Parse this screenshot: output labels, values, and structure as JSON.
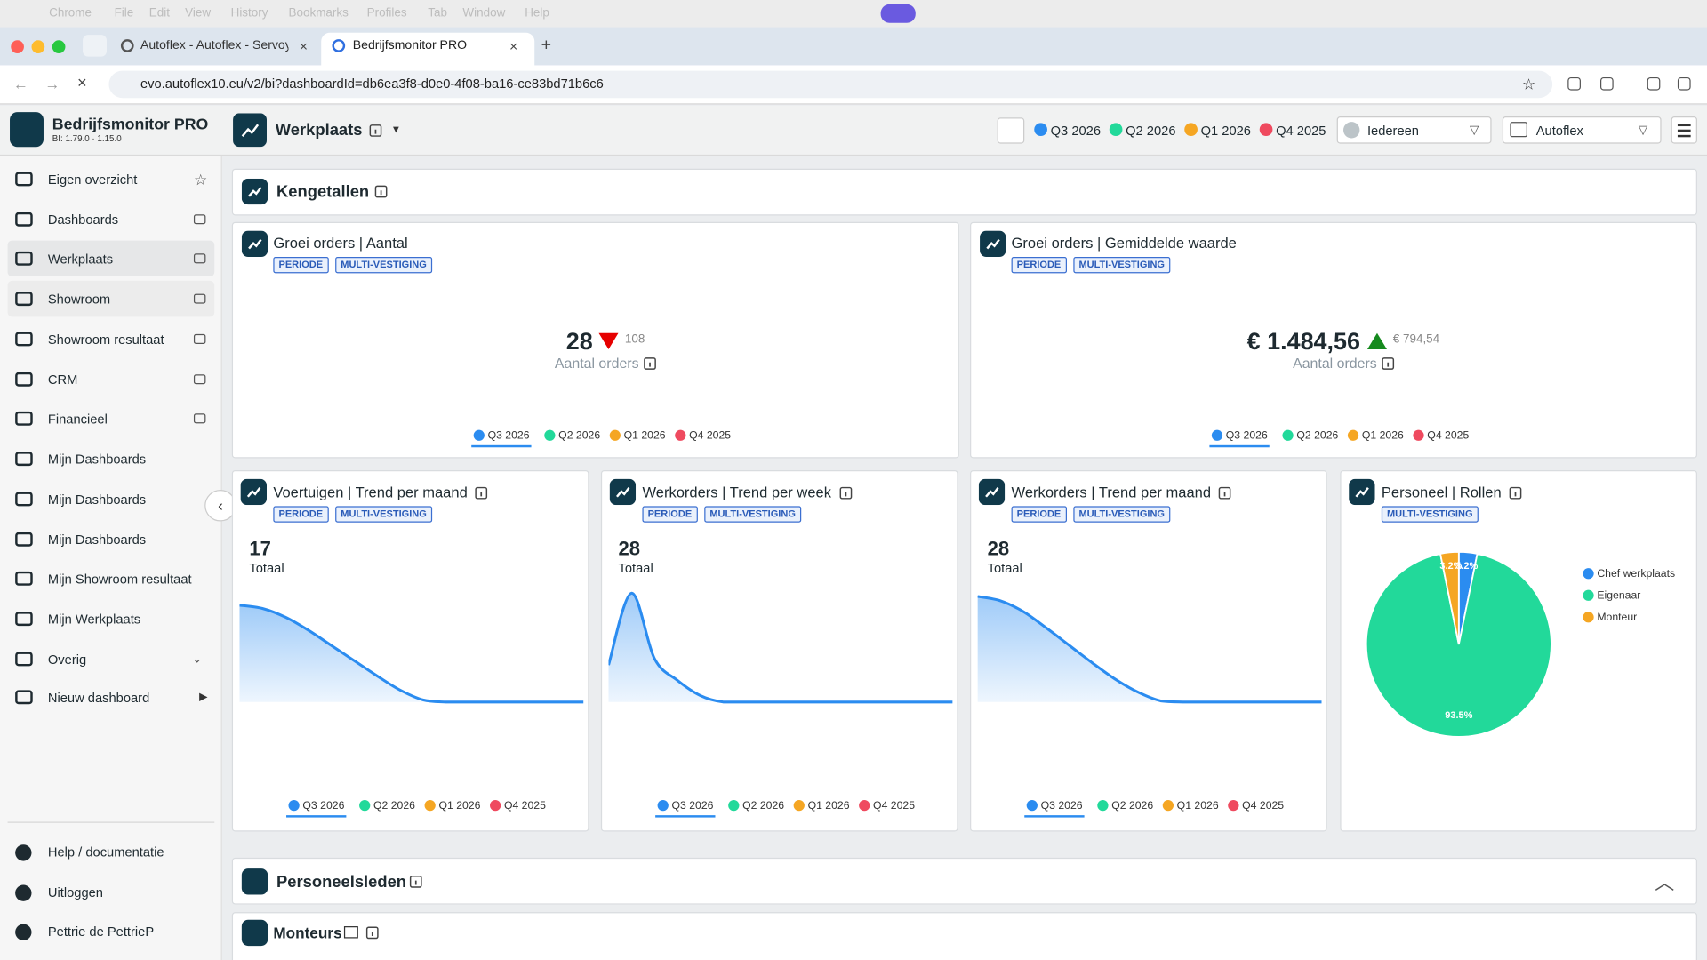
{
  "os_menu": [
    "Chrome",
    "File",
    "Edit",
    "View",
    "History",
    "Bookmarks",
    "Profiles",
    "Tab",
    "Window",
    "Help"
  ],
  "browser": {
    "tabs": [
      "Autoflex - Autoflex - Servoy N",
      "Bedrijfsmonitor PRO"
    ],
    "url": "evo.autoflex10.eu/v2/bi?dashboardId=db6ea3f8-d0e0-4f08-ba16-ce83bd71b6c6"
  },
  "app": {
    "name": "Bedrijfsmonitor PRO",
    "version": "BI: 1.79.0 · 1.15.0"
  },
  "sidebar": {
    "items": [
      "Eigen overzicht",
      "Dashboards",
      "Werkplaats",
      "Showroom",
      "Showroom resultaat",
      "CRM",
      "Financieel",
      "Mijn Dashboards",
      "Mijn Dashboards",
      "Mijn Dashboards",
      "Mijn Showroom resultaat",
      "Mijn Werkplaats",
      "Overig",
      "Nieuw dashboard"
    ],
    "footer": [
      "Help / documentatie",
      "Uitloggen",
      "Pettrie de PettrieP"
    ]
  },
  "header": {
    "title": "Werkplaats",
    "periods": [
      {
        "label": "Q3 2026",
        "color": "#2b8cf0"
      },
      {
        "label": "Q2 2026",
        "color": "#22d99a"
      },
      {
        "label": "Q1 2026",
        "color": "#f5a623"
      },
      {
        "label": "Q4 2025",
        "color": "#ef4a5f"
      }
    ],
    "user_filter": "Iedereen",
    "branch_filter": "Autoflex"
  },
  "sections": [
    "Kengetallen",
    "Personeelsleden",
    "Monteurs"
  ],
  "kpis": [
    {
      "title": "Groei orders | Aantal",
      "tags": [
        "PERIODE",
        "MULTI-VESTIGING"
      ],
      "value": "28",
      "trend": "down",
      "previous": "108",
      "caption": "Aantal orders"
    },
    {
      "title": "Groei orders | Gemiddelde waarde",
      "tags": [
        "PERIODE",
        "MULTI-VESTIGING"
      ],
      "value": "€ 1.484,56",
      "trend": "up",
      "previous": "€ 794,54",
      "caption": "Aantal orders"
    }
  ],
  "trends": [
    {
      "title": "Voertuigen | Trend per maand",
      "tags": [
        "PERIODE",
        "MULTI-VESTIGING"
      ],
      "total": 17,
      "total_label": "Totaal",
      "ylim": [
        0,
        10
      ],
      "color": "#2b8cf0",
      "values": [
        8.9,
        8.6,
        7.8,
        6.6,
        5.2,
        3.8,
        2.4,
        1.1,
        0.2,
        0,
        0,
        0,
        0,
        0,
        0,
        0
      ]
    },
    {
      "title": "Werkorders | Trend per week",
      "tags": [
        "PERIODE",
        "MULTI-VESTIGING"
      ],
      "total": 28,
      "total_label": "Totaal",
      "ylim": [
        0,
        10
      ],
      "color": "#2b8cf0",
      "values": [
        3.4,
        10,
        4,
        2,
        0.6,
        0,
        0,
        0,
        0,
        0,
        0,
        0,
        0,
        0,
        0,
        0
      ]
    },
    {
      "title": "Werkorders | Trend per maand",
      "tags": [
        "PERIODE",
        "MULTI-VESTIGING"
      ],
      "total": 28,
      "total_label": "Totaal",
      "ylim": [
        0,
        10
      ],
      "color": "#2b8cf0",
      "values": [
        9.7,
        9.3,
        8.3,
        6.8,
        5.2,
        3.6,
        2.1,
        0.9,
        0.1,
        0,
        0,
        0,
        0,
        0,
        0,
        0
      ]
    }
  ],
  "pie": {
    "title": "Personeel | Rollen",
    "tags": [
      "MULTI-VESTIGING"
    ],
    "slices": [
      {
        "name": "Chef werkplaats",
        "value": 3.2,
        "value_label": "3.2%",
        "color": "#2b8cf0"
      },
      {
        "name": "Eigenaar",
        "value": 93.5,
        "value_label": "93.5%",
        "color": "#22d99a"
      },
      {
        "name": "Monteur",
        "value": 3.2,
        "value_label": "3.2%",
        "color": "#f5a623"
      }
    ]
  }
}
